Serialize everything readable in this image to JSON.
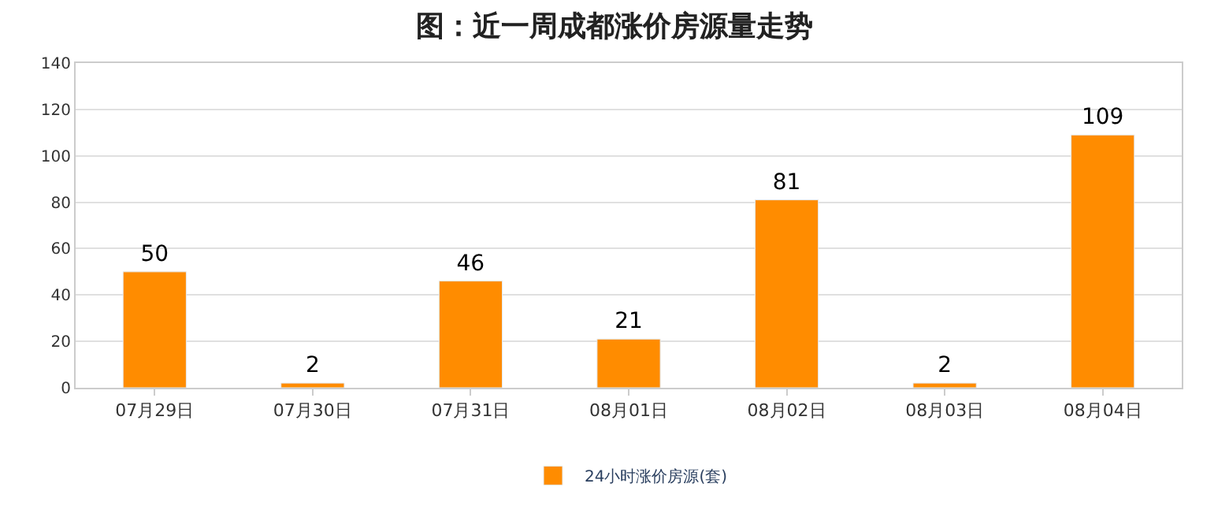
{
  "chart_data": {
    "type": "bar",
    "title": "图：近一周成都涨价房源量走势",
    "categories": [
      "07月29日",
      "07月30日",
      "07月31日",
      "08月01日",
      "08月02日",
      "08月03日",
      "08月04日"
    ],
    "series": [
      {
        "name": "24小时涨价房源(套)",
        "color": "#ff8c00",
        "values": [
          50,
          2,
          46,
          21,
          81,
          2,
          109
        ]
      }
    ],
    "ylim": [
      0,
      140
    ],
    "yticks": [
      0,
      20,
      40,
      60,
      80,
      100,
      120,
      140
    ],
    "grid": "y",
    "legend": "bottom",
    "data_labels": true
  }
}
